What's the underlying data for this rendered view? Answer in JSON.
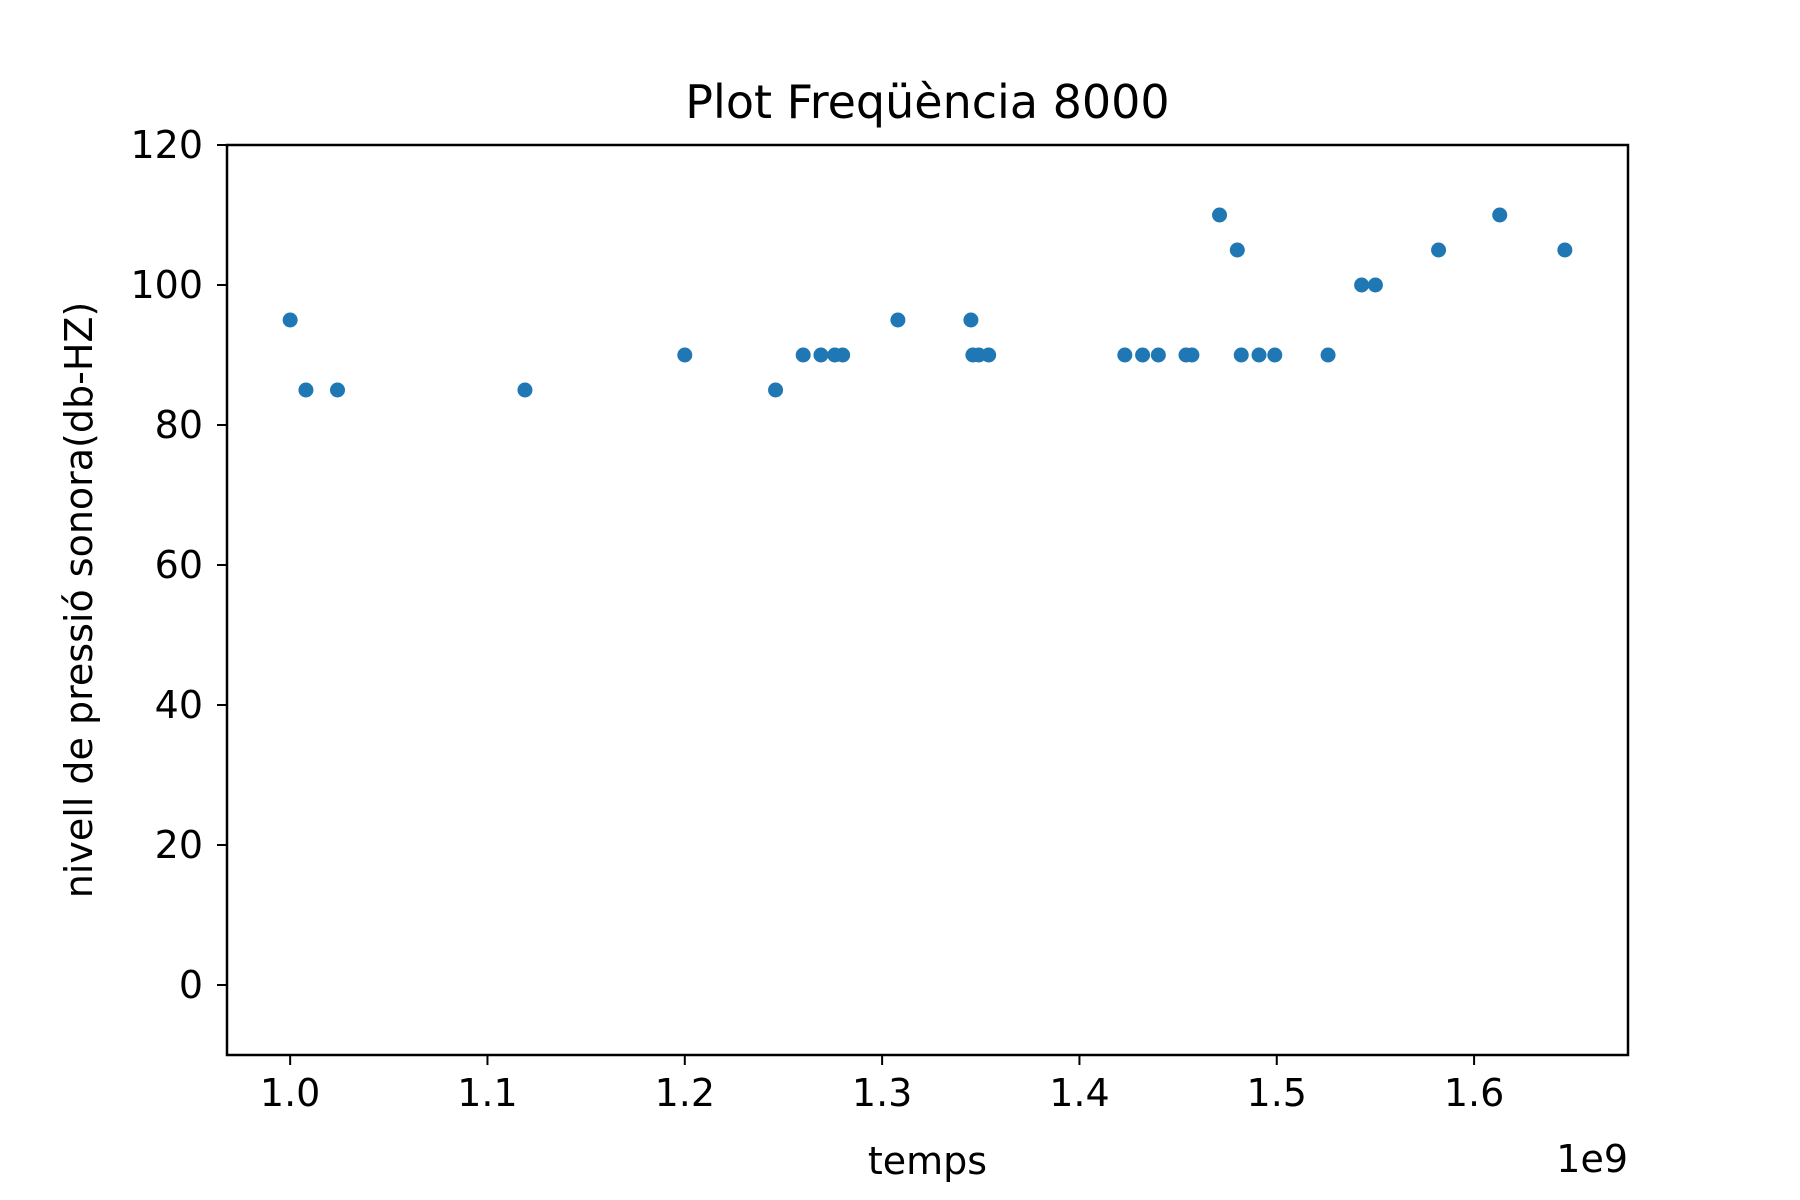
{
  "chart_data": {
    "type": "scatter",
    "title": "Plot Freqüència 8000",
    "xlabel": "temps",
    "ylabel": "nivell de pressió sonora(db-HZ)",
    "x_offset_label": "1e9",
    "xlim": [
      0.968,
      1.678
    ],
    "ylim": [
      -10,
      120
    ],
    "x_ticks": [
      1.0,
      1.1,
      1.2,
      1.3,
      1.4,
      1.5,
      1.6
    ],
    "x_tick_labels": [
      "1.0",
      "1.1",
      "1.2",
      "1.3",
      "1.4",
      "1.5",
      "1.6"
    ],
    "y_ticks": [
      0,
      20,
      40,
      60,
      80,
      100,
      120
    ],
    "y_tick_labels": [
      "0",
      "20",
      "40",
      "60",
      "80",
      "100",
      "120"
    ],
    "grid": false,
    "marker_color": "#1f77b4",
    "points": [
      {
        "x": 1.0,
        "y": 95
      },
      {
        "x": 1.008,
        "y": 85
      },
      {
        "x": 1.024,
        "y": 85
      },
      {
        "x": 1.119,
        "y": 85
      },
      {
        "x": 1.2,
        "y": 90
      },
      {
        "x": 1.246,
        "y": 85
      },
      {
        "x": 1.26,
        "y": 90
      },
      {
        "x": 1.269,
        "y": 90
      },
      {
        "x": 1.276,
        "y": 90
      },
      {
        "x": 1.28,
        "y": 90
      },
      {
        "x": 1.308,
        "y": 95
      },
      {
        "x": 1.345,
        "y": 95
      },
      {
        "x": 1.346,
        "y": 90
      },
      {
        "x": 1.349,
        "y": 90
      },
      {
        "x": 1.354,
        "y": 90
      },
      {
        "x": 1.423,
        "y": 90
      },
      {
        "x": 1.432,
        "y": 90
      },
      {
        "x": 1.44,
        "y": 90
      },
      {
        "x": 1.454,
        "y": 90
      },
      {
        "x": 1.457,
        "y": 90
      },
      {
        "x": 1.471,
        "y": 110
      },
      {
        "x": 1.48,
        "y": 105
      },
      {
        "x": 1.482,
        "y": 90
      },
      {
        "x": 1.491,
        "y": 90
      },
      {
        "x": 1.499,
        "y": 90
      },
      {
        "x": 1.526,
        "y": 90
      },
      {
        "x": 1.543,
        "y": 100
      },
      {
        "x": 1.55,
        "y": 100
      },
      {
        "x": 1.582,
        "y": 105
      },
      {
        "x": 1.613,
        "y": 110
      },
      {
        "x": 1.646,
        "y": 105
      }
    ]
  }
}
